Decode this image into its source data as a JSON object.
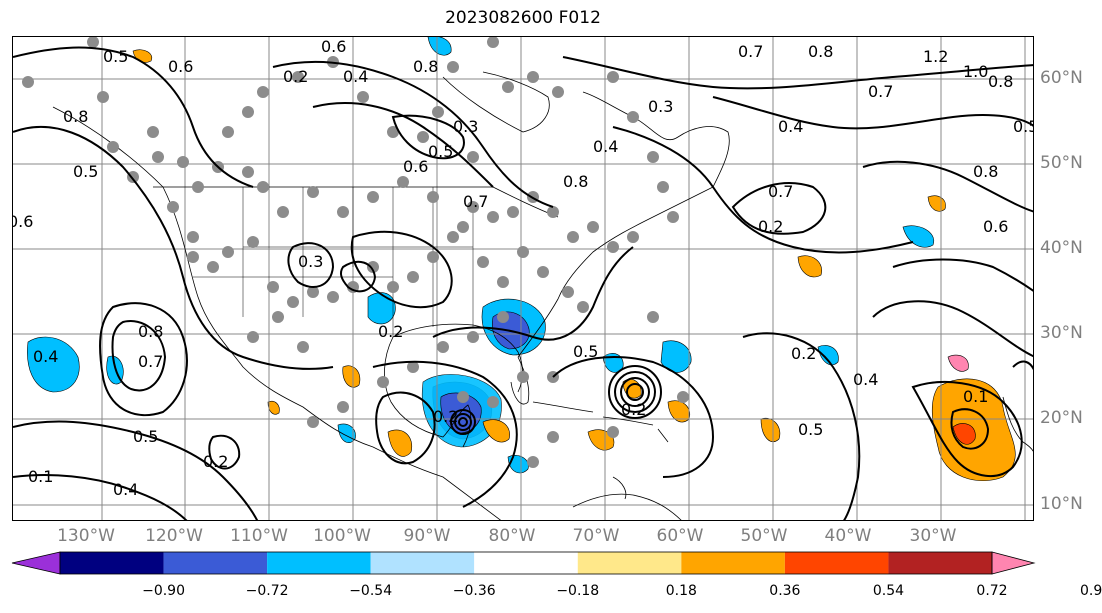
{
  "title": "2023082600 F012",
  "lon_labels": [
    "130°W",
    "120°W",
    "110°W",
    "100°W",
    "90°W",
    "80°W",
    "70°W",
    "60°W",
    "50°W",
    "40°W",
    "30°W"
  ],
  "lat_labels": [
    "60°N",
    "50°N",
    "40°N",
    "30°N",
    "20°N",
    "10°N"
  ],
  "colorbar": {
    "ticks": [
      "−0.90",
      "−0.72",
      "−0.54",
      "−0.36",
      "−0.18",
      "0.18",
      "0.36",
      "0.54",
      "0.72",
      "0.90"
    ],
    "colors": [
      "#9b30d9",
      "#000080",
      "#3b5bd6",
      "#00bfff",
      "#b0e2ff",
      "#ffffff",
      "#ffe88a",
      "#ffa500",
      "#ff4500",
      "#b22222",
      "#ff85b0"
    ]
  },
  "contour_labels": [
    "0.5",
    "0.6",
    "0.8",
    "0.3",
    "0.2",
    "0.4",
    "0.6",
    "0.7",
    "0.5",
    "0.8",
    "1.2",
    "1.0",
    "0.8",
    "0.7",
    "0.4",
    "0.5",
    "0.8",
    "0.5",
    "0.6",
    "0.7",
    "0.8",
    "0.8",
    "0.6",
    "0.7",
    "0.4",
    "0.3",
    "0.2",
    "0.6",
    "0.8",
    "0.7",
    "0.5",
    "0.4",
    "0.2",
    "0.2",
    "0.4",
    "0.5",
    "0.4",
    "0.3",
    "0.2",
    "0.2",
    "0.5",
    "0.2",
    "0.1",
    "0.1"
  ]
}
